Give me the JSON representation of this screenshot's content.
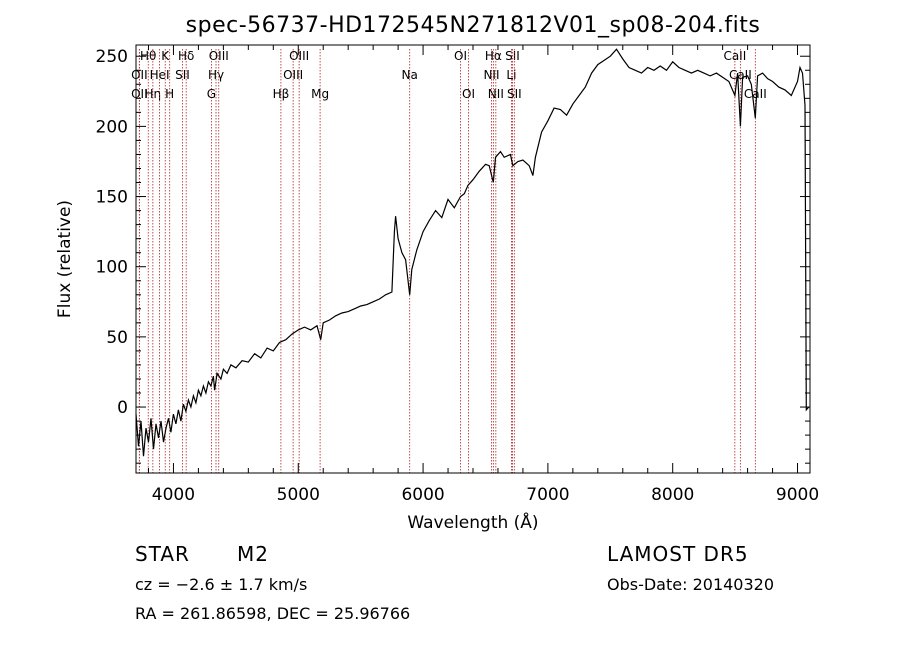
{
  "chart_data": {
    "type": "line",
    "title": "spec-56737-HD172545N271812V01_sp08-204.fits",
    "xlabel": "Wavelength (Å)",
    "ylabel": "Flux (relative)",
    "xlim": [
      3700,
      9100
    ],
    "ylim": [
      -47,
      258
    ],
    "xticks": [
      4000,
      5000,
      6000,
      7000,
      8000,
      9000
    ],
    "yticks": [
      0,
      50,
      100,
      150,
      200,
      250
    ],
    "grid": false,
    "series": [
      {
        "points": [
          [
            3700,
            -5
          ],
          [
            3720,
            -28
          ],
          [
            3740,
            -10
          ],
          [
            3760,
            -35
          ],
          [
            3780,
            -15
          ],
          [
            3800,
            -25
          ],
          [
            3820,
            -8
          ],
          [
            3840,
            -30
          ],
          [
            3860,
            -12
          ],
          [
            3880,
            -22
          ],
          [
            3900,
            -10
          ],
          [
            3920,
            -25
          ],
          [
            3940,
            -15
          ],
          [
            3960,
            -8
          ],
          [
            3980,
            -18
          ],
          [
            4000,
            -5
          ],
          [
            4020,
            -12
          ],
          [
            4040,
            -2
          ],
          [
            4060,
            -10
          ],
          [
            4080,
            2
          ],
          [
            4100,
            -3
          ],
          [
            4120,
            5
          ],
          [
            4140,
            0
          ],
          [
            4160,
            8
          ],
          [
            4180,
            3
          ],
          [
            4200,
            12
          ],
          [
            4220,
            8
          ],
          [
            4240,
            15
          ],
          [
            4260,
            10
          ],
          [
            4280,
            18
          ],
          [
            4300,
            15
          ],
          [
            4320,
            22
          ],
          [
            4330,
            12
          ],
          [
            4350,
            24
          ],
          [
            4380,
            20
          ],
          [
            4400,
            27
          ],
          [
            4430,
            24
          ],
          [
            4460,
            30
          ],
          [
            4500,
            28
          ],
          [
            4550,
            33
          ],
          [
            4600,
            32
          ],
          [
            4650,
            38
          ],
          [
            4700,
            35
          ],
          [
            4750,
            42
          ],
          [
            4800,
            40
          ],
          [
            4850,
            46
          ],
          [
            4900,
            48
          ],
          [
            4950,
            52
          ],
          [
            5000,
            55
          ],
          [
            5050,
            57
          ],
          [
            5100,
            55
          ],
          [
            5150,
            58
          ],
          [
            5180,
            48
          ],
          [
            5200,
            60
          ],
          [
            5250,
            62
          ],
          [
            5300,
            65
          ],
          [
            5350,
            67
          ],
          [
            5400,
            68
          ],
          [
            5450,
            70
          ],
          [
            5500,
            72
          ],
          [
            5550,
            73
          ],
          [
            5600,
            75
          ],
          [
            5650,
            77
          ],
          [
            5700,
            80
          ],
          [
            5750,
            82
          ],
          [
            5770,
            125
          ],
          [
            5780,
            136
          ],
          [
            5800,
            120
          ],
          [
            5830,
            110
          ],
          [
            5860,
            105
          ],
          [
            5893,
            80
          ],
          [
            5910,
            98
          ],
          [
            5950,
            112
          ],
          [
            6000,
            125
          ],
          [
            6050,
            133
          ],
          [
            6100,
            140
          ],
          [
            6150,
            135
          ],
          [
            6200,
            148
          ],
          [
            6250,
            142
          ],
          [
            6300,
            150
          ],
          [
            6330,
            152
          ],
          [
            6360,
            158
          ],
          [
            6400,
            162
          ],
          [
            6450,
            168
          ],
          [
            6500,
            173
          ],
          [
            6530,
            172
          ],
          [
            6563,
            160
          ],
          [
            6580,
            178
          ],
          [
            6620,
            182
          ],
          [
            6650,
            178
          ],
          [
            6700,
            180
          ],
          [
            6720,
            172
          ],
          [
            6760,
            175
          ],
          [
            6800,
            176
          ],
          [
            6850,
            172
          ],
          [
            6880,
            165
          ],
          [
            6900,
            178
          ],
          [
            6950,
            196
          ],
          [
            7000,
            204
          ],
          [
            7050,
            213
          ],
          [
            7100,
            212
          ],
          [
            7150,
            208
          ],
          [
            7200,
            216
          ],
          [
            7250,
            222
          ],
          [
            7300,
            228
          ],
          [
            7350,
            238
          ],
          [
            7400,
            244
          ],
          [
            7450,
            247
          ],
          [
            7500,
            250
          ],
          [
            7550,
            255
          ],
          [
            7600,
            248
          ],
          [
            7650,
            242
          ],
          [
            7700,
            240
          ],
          [
            7750,
            238
          ],
          [
            7800,
            242
          ],
          [
            7850,
            240
          ],
          [
            7900,
            243
          ],
          [
            7950,
            240
          ],
          [
            8000,
            246
          ],
          [
            8050,
            242
          ],
          [
            8100,
            240
          ],
          [
            8150,
            238
          ],
          [
            8200,
            240
          ],
          [
            8250,
            238
          ],
          [
            8300,
            236
          ],
          [
            8350,
            238
          ],
          [
            8400,
            235
          ],
          [
            8450,
            232
          ],
          [
            8498,
            222
          ],
          [
            8520,
            238
          ],
          [
            8542,
            200
          ],
          [
            8560,
            235
          ],
          [
            8600,
            236
          ],
          [
            8630,
            230
          ],
          [
            8662,
            206
          ],
          [
            8680,
            236
          ],
          [
            8720,
            238
          ],
          [
            8760,
            234
          ],
          [
            8800,
            232
          ],
          [
            8850,
            228
          ],
          [
            8900,
            226
          ],
          [
            8950,
            222
          ],
          [
            9000,
            232
          ],
          [
            9020,
            242
          ],
          [
            9040,
            238
          ],
          [
            9060,
            215
          ],
          [
            9070,
            -2
          ],
          [
            9090,
            0
          ]
        ]
      }
    ],
    "line_markers": [
      {
        "wavelength": 3727,
        "row": 1,
        "label": "OII"
      },
      {
        "wavelength": 3727,
        "row": 2,
        "label": "OII"
      },
      {
        "wavelength": 3798,
        "row": 0,
        "label": "Hθ"
      },
      {
        "wavelength": 3835,
        "row": 2,
        "label": "Hη"
      },
      {
        "wavelength": 3889,
        "row": 1,
        "label": "HeI"
      },
      {
        "wavelength": 3934,
        "row": 0,
        "label": "K"
      },
      {
        "wavelength": 3970,
        "row": 2,
        "label": "H"
      },
      {
        "wavelength": 4072,
        "row": 1,
        "label": "SII"
      },
      {
        "wavelength": 4102,
        "row": 0,
        "label": "Hδ"
      },
      {
        "wavelength": 4304,
        "row": 2,
        "label": "G"
      },
      {
        "wavelength": 4341,
        "row": 1,
        "label": "Hγ"
      },
      {
        "wavelength": 4363,
        "row": 0,
        "label": "OIII"
      },
      {
        "wavelength": 4861,
        "row": 2,
        "label": "Hβ"
      },
      {
        "wavelength": 4959,
        "row": 1,
        "label": "OIII"
      },
      {
        "wavelength": 5007,
        "row": 0,
        "label": "OIII"
      },
      {
        "wavelength": 5175,
        "row": 2,
        "label": "Mg"
      },
      {
        "wavelength": 5893,
        "row": 1,
        "label": "Na"
      },
      {
        "wavelength": 6300,
        "row": 0,
        "label": "OI"
      },
      {
        "wavelength": 6364,
        "row": 2,
        "label": "OI"
      },
      {
        "wavelength": 6548,
        "row": 1,
        "label": "NII"
      },
      {
        "wavelength": 6563,
        "row": 0,
        "label": "Hα"
      },
      {
        "wavelength": 6583,
        "row": 2,
        "label": "NII"
      },
      {
        "wavelength": 6708,
        "row": 1,
        "label": "Li"
      },
      {
        "wavelength": 6716,
        "row": 0,
        "label": "SII"
      },
      {
        "wavelength": 6731,
        "row": 2,
        "label": "SII"
      },
      {
        "wavelength": 8498,
        "row": 0,
        "label": "CaII"
      },
      {
        "wavelength": 8542,
        "row": 1,
        "label": "CaII"
      },
      {
        "wavelength": 8662,
        "row": 2,
        "label": "CaII"
      }
    ],
    "colors": {
      "spectrum": "#000000",
      "marker": "#b22222",
      "axes": "#000000"
    }
  },
  "info": {
    "object_class": "STAR",
    "subclass": "M2",
    "survey": "LAMOST DR5",
    "redshift": "cz = −2.6 ± 1.7 km/s",
    "obs_date": "Obs-Date: 20140320",
    "coords": "RA = 261.86598, DEC =  25.96766"
  }
}
